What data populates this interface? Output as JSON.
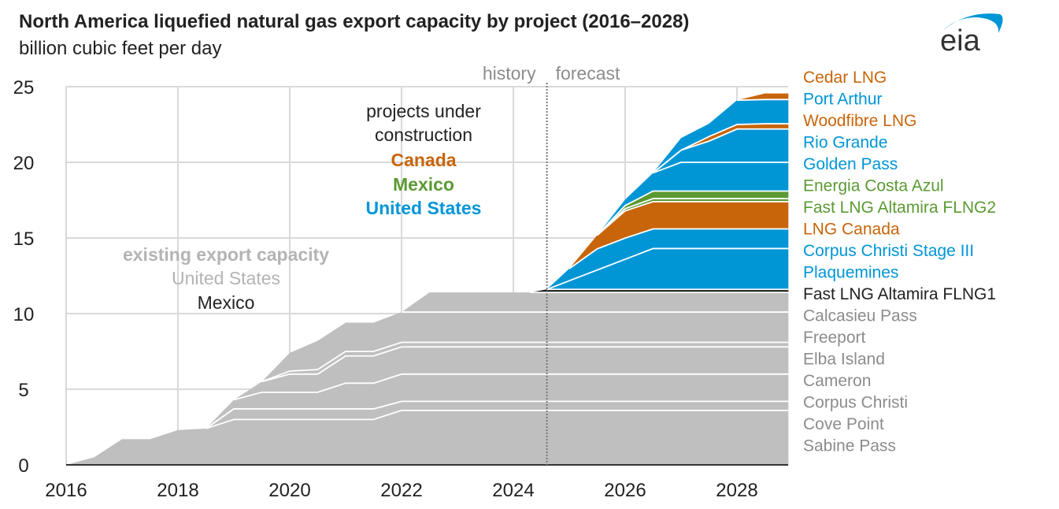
{
  "chart_data": {
    "type": "area",
    "stacked": true,
    "title": "North America liquefied natural gas export capacity by project (2016–2028)",
    "subtitle": "billion cubic feet per day",
    "xlim": [
      2016,
      2028.92
    ],
    "ylim": [
      0,
      25
    ],
    "x_ticks": [
      2016,
      2018,
      2020,
      2022,
      2024,
      2026,
      2028
    ],
    "y_ticks": [
      0,
      5,
      10,
      15,
      20,
      25
    ],
    "grid": true,
    "legend_placement": "right",
    "forecast_start": 2024.6,
    "annotations": {
      "history": "history",
      "forecast": "forecast",
      "projects_line1": "projects under",
      "projects_line2": "construction",
      "canada": "Canada",
      "mexico": "Mexico",
      "united_states": "United States",
      "existing": "existing export capacity",
      "existing_us": "United States",
      "existing_mexico": "Mexico"
    },
    "colors": {
      "existing": "#bfbfbf",
      "mexico_existing": "#1a1a1a",
      "us": "#0096d6",
      "canada": "#c8650a",
      "mexico": "#5b9a32",
      "existing_text": "#8c8c8c",
      "existing_label": "#b4b4b4"
    },
    "x": [
      2016,
      2016.5,
      2017,
      2017.5,
      2018,
      2018.5,
      2019,
      2019.5,
      2020,
      2020.5,
      2021,
      2021.5,
      2022,
      2022.5,
      2024.3,
      2024.6,
      2025,
      2025.5,
      2026,
      2026.5,
      2027,
      2027.5,
      2028,
      2028.5,
      2028.92
    ],
    "series": [
      {
        "name": "Sabine Pass",
        "group": "existing",
        "values": [
          0,
          0.5,
          1.7,
          1.7,
          2.3,
          2.4,
          3.0,
          3.0,
          3.0,
          3.0,
          3.0,
          3.0,
          3.6,
          3.6,
          3.6,
          3.6,
          3.6,
          3.6,
          3.6,
          3.6,
          3.6,
          3.6,
          3.6,
          3.6,
          3.6
        ]
      },
      {
        "name": "Cove Point",
        "group": "existing",
        "values": [
          0,
          0,
          0,
          0,
          0,
          0,
          0.7,
          0.7,
          0.7,
          0.7,
          0.7,
          0.7,
          0.6,
          0.6,
          0.6,
          0.6,
          0.6,
          0.6,
          0.6,
          0.6,
          0.6,
          0.6,
          0.6,
          0.6,
          0.6
        ]
      },
      {
        "name": "Corpus Christi",
        "group": "existing",
        "values": [
          0,
          0,
          0,
          0,
          0,
          0,
          0.6,
          1.1,
          1.1,
          1.1,
          1.7,
          1.7,
          1.8,
          1.8,
          1.8,
          1.8,
          1.8,
          1.8,
          1.8,
          1.8,
          1.8,
          1.8,
          1.8,
          1.8,
          1.8
        ]
      },
      {
        "name": "Cameron",
        "group": "existing",
        "values": [
          0,
          0,
          0,
          0,
          0,
          0,
          0,
          0.7,
          1.2,
          1.2,
          1.8,
          1.8,
          1.8,
          1.8,
          1.8,
          1.8,
          1.8,
          1.8,
          1.8,
          1.8,
          1.8,
          1.8,
          1.8,
          1.8,
          1.8
        ]
      },
      {
        "name": "Elba Island",
        "group": "existing",
        "values": [
          0,
          0,
          0,
          0,
          0,
          0,
          0,
          0,
          0.2,
          0.3,
          0.3,
          0.3,
          0.3,
          0.3,
          0.3,
          0.3,
          0.3,
          0.3,
          0.3,
          0.3,
          0.3,
          0.3,
          0.3,
          0.3,
          0.3
        ]
      },
      {
        "name": "Freeport",
        "group": "existing",
        "values": [
          0,
          0,
          0,
          0,
          0,
          0,
          0,
          0,
          1.2,
          1.9,
          1.9,
          1.9,
          2.0,
          2.0,
          2.0,
          2.0,
          2.0,
          2.0,
          2.0,
          2.0,
          2.0,
          2.0,
          2.0,
          2.0,
          2.0
        ]
      },
      {
        "name": "Calcasieu Pass",
        "group": "existing",
        "values": [
          0,
          0,
          0,
          0,
          0,
          0,
          0,
          0,
          0,
          0,
          0,
          0,
          0,
          1.3,
          1.3,
          1.3,
          1.3,
          1.3,
          1.3,
          1.3,
          1.3,
          1.3,
          1.3,
          1.3,
          1.3
        ]
      },
      {
        "name": "Fast LNG Altamira FLNG1",
        "group": "mexico_existing",
        "values": [
          0,
          0,
          0,
          0,
          0,
          0,
          0,
          0,
          0,
          0,
          0,
          0,
          0,
          0,
          0,
          0.2,
          0.2,
          0.2,
          0.2,
          0.2,
          0.2,
          0.2,
          0.2,
          0.2,
          0.2
        ]
      },
      {
        "name": "Plaquemines",
        "group": "us",
        "values": [
          0,
          0,
          0,
          0,
          0,
          0,
          0,
          0,
          0,
          0,
          0,
          0,
          0,
          0,
          0,
          0,
          0.57,
          1.28,
          1.99,
          2.7,
          2.7,
          2.7,
          2.7,
          2.7,
          2.7
        ]
      },
      {
        "name": "Corpus Christi Stage III",
        "group": "us",
        "values": [
          0,
          0,
          0,
          0,
          0,
          0,
          0,
          0,
          0,
          0,
          0,
          0,
          0,
          0,
          0,
          0,
          0.8,
          1.4,
          1.4,
          1.3,
          1.3,
          1.3,
          1.3,
          1.3,
          1.3
        ]
      },
      {
        "name": "LNG Canada",
        "group": "canada",
        "values": [
          0,
          0,
          0,
          0,
          0,
          0,
          0,
          0,
          0,
          0,
          0,
          0,
          0,
          0,
          0,
          0,
          0,
          0.9,
          1.8,
          1.8,
          1.8,
          1.8,
          1.8,
          1.8,
          1.8
        ]
      },
      {
        "name": "Fast LNG Altamira FLNG2",
        "group": "mexico",
        "values": [
          0,
          0,
          0,
          0,
          0,
          0,
          0,
          0,
          0,
          0,
          0,
          0,
          0,
          0,
          0,
          0,
          0,
          0,
          0.15,
          0.2,
          0.2,
          0.2,
          0.2,
          0.2,
          0.2
        ]
      },
      {
        "name": "Energia Costa Azul",
        "group": "mexico",
        "values": [
          0,
          0,
          0,
          0,
          0,
          0,
          0,
          0,
          0,
          0,
          0,
          0,
          0,
          0,
          0,
          0,
          0,
          0,
          0.2,
          0.5,
          0.5,
          0.5,
          0.5,
          0.5,
          0.5
        ]
      },
      {
        "name": "Golden Pass",
        "group": "us",
        "values": [
          0,
          0,
          0,
          0,
          0,
          0,
          0,
          0,
          0,
          0,
          0,
          0,
          0,
          0,
          0,
          0,
          0,
          0,
          0.4,
          1.2,
          1.9,
          1.9,
          1.9,
          1.9,
          1.9
        ]
      },
      {
        "name": "Rio Grande",
        "group": "us",
        "values": [
          0,
          0,
          0,
          0,
          0,
          0,
          0,
          0,
          0,
          0,
          0,
          0,
          0,
          0,
          0,
          0,
          0,
          0,
          0,
          0,
          0.8,
          1.4,
          2.2,
          2.2,
          2.2
        ]
      },
      {
        "name": "Woodfibre LNG",
        "group": "canada",
        "values": [
          0,
          0,
          0,
          0,
          0,
          0,
          0,
          0,
          0,
          0,
          0,
          0,
          0,
          0,
          0,
          0,
          0,
          0,
          0,
          0,
          0,
          0.3,
          0.3,
          0.35,
          0.35
        ]
      },
      {
        "name": "Port Arthur",
        "group": "us",
        "values": [
          0,
          0,
          0,
          0,
          0,
          0,
          0,
          0,
          0,
          0,
          0,
          0,
          0,
          0,
          0,
          0,
          0,
          0,
          0,
          0,
          0.8,
          0.85,
          1.6,
          1.6,
          1.6
        ]
      },
      {
        "name": "Cedar LNG",
        "group": "canada",
        "values": [
          0,
          0,
          0,
          0,
          0,
          0,
          0,
          0,
          0,
          0,
          0,
          0,
          0,
          0,
          0,
          0,
          0,
          0,
          0,
          0,
          0,
          0,
          0,
          0.4,
          0.4
        ]
      }
    ]
  }
}
